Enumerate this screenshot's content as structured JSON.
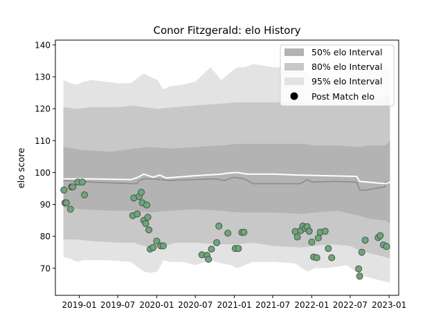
{
  "chart_data": {
    "type": "scatter",
    "title": "Conor Fitzgerald: elo History",
    "xlabel": "",
    "ylabel": "elo score",
    "xlim": [
      "2018-09-10",
      "2023-02-15"
    ],
    "ylim": [
      61.5,
      141.5
    ],
    "x_ticks": [
      "2019-01",
      "2019-07",
      "2020-01",
      "2020-07",
      "2021-01",
      "2021-07",
      "2022-01",
      "2022-07",
      "2023-01"
    ],
    "y_ticks": [
      70,
      80,
      90,
      100,
      110,
      120,
      130,
      140
    ],
    "grid": false,
    "legend": {
      "position": "top-right",
      "entries": [
        "50% elo Interval",
        "80% elo Interval",
        "95% elo Interval",
        "Post Match elo"
      ]
    },
    "colors": {
      "band50": "#b3b3b3",
      "band80": "#c8c8c8",
      "band95": "#e3e3e3",
      "median_line": "#8c8c8c",
      "mean_line": "#ffffff",
      "points": "#6aa87a",
      "point_edge": "#4d4d4d"
    },
    "series": [
      {
        "name": "95% elo Interval",
        "kind": "band",
        "x": [
          "2018-10-18",
          "2018-11-20",
          "2018-12-20",
          "2019-01-20",
          "2019-03-01",
          "2019-05-01",
          "2019-07-01",
          "2019-09-01",
          "2019-10-10",
          "2019-11-01",
          "2019-12-01",
          "2020-01-05",
          "2020-02-01",
          "2020-03-01",
          "2020-05-01",
          "2020-07-01",
          "2020-09-10",
          "2020-11-01",
          "2020-12-15",
          "2021-01-15",
          "2021-02-20",
          "2021-04-01",
          "2021-07-01",
          "2021-10-15",
          "2021-11-15",
          "2021-12-15",
          "2022-01-15",
          "2022-03-01",
          "2022-05-01",
          "2022-06-15",
          "2022-07-15",
          "2022-08-20",
          "2022-10-01",
          "2022-11-01",
          "2022-12-01",
          "2023-01-05"
        ],
        "low": [
          73.5,
          73,
          72,
          72.5,
          72.5,
          72.5,
          72.3,
          72,
          70,
          69,
          68.5,
          69,
          72.5,
          72,
          72,
          71,
          72.5,
          71.5,
          71,
          70,
          71,
          72,
          72,
          71.5,
          70,
          69,
          70,
          70,
          70.5,
          71,
          69.5,
          68,
          67,
          66.5,
          66,
          65.5
        ],
        "high": [
          129,
          128,
          127.5,
          128.5,
          129,
          128.5,
          128,
          128,
          130,
          131,
          130,
          129,
          126,
          127,
          127.5,
          128.5,
          133,
          129,
          131.5,
          133,
          133,
          134,
          133,
          133,
          133,
          131,
          130,
          130.5,
          130,
          130,
          131,
          133.5,
          134,
          134,
          133.5,
          132
        ]
      },
      {
        "name": "80% elo Interval",
        "kind": "band",
        "x": [
          "2018-10-18",
          "2018-12-20",
          "2019-03-01",
          "2019-07-01",
          "2019-09-15",
          "2019-11-01",
          "2020-01-05",
          "2020-04-01",
          "2020-07-01",
          "2020-10-15",
          "2021-01-15",
          "2021-04-01",
          "2021-07-01",
          "2021-11-15",
          "2022-01-15",
          "2022-04-01",
          "2022-07-01",
          "2022-08-15",
          "2022-10-15",
          "2022-12-15",
          "2023-01-05"
        ],
        "low": [
          79,
          79,
          78.5,
          78,
          78,
          77,
          76.5,
          78,
          78,
          77.5,
          77.5,
          78,
          77,
          76.5,
          77,
          77.5,
          77,
          75.5,
          74.5,
          73.5,
          73
        ],
        "high": [
          120.5,
          120,
          120.5,
          120.5,
          121,
          120.5,
          120,
          120.5,
          121,
          121.5,
          122,
          122,
          122,
          122,
          121.5,
          121.5,
          122,
          122,
          123,
          124,
          124
        ]
      },
      {
        "name": "50% elo Interval",
        "kind": "band",
        "x": [
          "2018-10-18",
          "2019-01-15",
          "2019-06-01",
          "2019-09-15",
          "2019-12-01",
          "2020-03-01",
          "2020-07-01",
          "2020-11-01",
          "2021-01-15",
          "2021-07-01",
          "2021-11-15",
          "2022-01-15",
          "2022-05-01",
          "2022-08-10",
          "2022-10-01",
          "2022-12-15",
          "2023-01-05"
        ],
        "low": [
          89,
          88.5,
          88,
          88,
          87.5,
          88,
          88.5,
          88,
          87.5,
          87.5,
          87,
          87.5,
          88,
          86.5,
          85.5,
          85,
          84
        ],
        "high": [
          108,
          107,
          106.5,
          107.5,
          108,
          107.5,
          108,
          108.5,
          109,
          109,
          109,
          108.5,
          108.5,
          108,
          108.5,
          108.5,
          110
        ]
      },
      {
        "name": "median",
        "kind": "line",
        "x": [
          "2018-10-18",
          "2019-03-01",
          "2019-09-01",
          "2019-10-01",
          "2019-10-10",
          "2019-11-01",
          "2019-12-15",
          "2020-01-15",
          "2020-03-01",
          "2020-07-01",
          "2020-10-01",
          "2020-11-15",
          "2021-01-01",
          "2021-02-15",
          "2021-04-01",
          "2021-07-01",
          "2021-10-01",
          "2021-11-10",
          "2021-12-10",
          "2022-01-01",
          "2022-05-01",
          "2022-08-01",
          "2022-08-15",
          "2022-09-15",
          "2022-12-10",
          "2022-12-15",
          "2023-01-05"
        ],
        "values": [
          97.5,
          97,
          96.5,
          96.5,
          97.5,
          98,
          98,
          97.8,
          97.5,
          97.8,
          98,
          97.5,
          98.5,
          98,
          96.5,
          96.5,
          96.5,
          96.5,
          97.8,
          97,
          97.2,
          97,
          94.5,
          94.5,
          95.5,
          97,
          97
        ]
      },
      {
        "name": "mean",
        "kind": "line",
        "x": [
          "2018-10-18",
          "2019-03-01",
          "2019-09-01",
          "2019-10-05",
          "2019-11-01",
          "2019-12-15",
          "2020-01-15",
          "2020-02-15",
          "2020-07-01",
          "2020-11-01",
          "2020-12-01",
          "2021-01-15",
          "2021-03-01",
          "2021-07-01",
          "2021-11-01",
          "2022-03-01",
          "2022-08-01",
          "2022-08-15",
          "2022-12-15",
          "2023-01-05"
        ],
        "values": [
          98,
          98,
          97.8,
          98.5,
          99.5,
          98.5,
          99.2,
          98.3,
          99,
          99.5,
          99.8,
          100,
          99.5,
          99.5,
          99.2,
          99,
          98.8,
          97.2,
          96.5,
          97
        ]
      },
      {
        "name": "Post Match elo",
        "kind": "points",
        "x": [
          "2018-10-20",
          "2018-10-25",
          "2018-11-01",
          "2018-11-20",
          "2018-11-25",
          "2018-12-01",
          "2018-12-25",
          "2019-01-15",
          "2019-01-25",
          "2019-09-10",
          "2019-09-15",
          "2019-10-01",
          "2019-10-10",
          "2019-10-20",
          "2019-10-25",
          "2019-11-01",
          "2019-11-10",
          "2019-11-15",
          "2019-11-20",
          "2019-11-25",
          "2019-12-01",
          "2019-12-15",
          "2020-01-01",
          "2020-01-20",
          "2020-02-01",
          "2020-08-01",
          "2020-08-25",
          "2020-09-01",
          "2020-09-15",
          "2020-10-10",
          "2020-10-20",
          "2020-12-01",
          "2021-01-05",
          "2021-01-20",
          "2021-02-05",
          "2021-02-15",
          "2021-10-15",
          "2021-10-25",
          "2021-11-10",
          "2021-11-20",
          "2021-12-01",
          "2021-12-10",
          "2021-12-20",
          "2022-01-01",
          "2022-01-10",
          "2022-01-25",
          "2022-02-01",
          "2022-02-10",
          "2022-03-05",
          "2022-03-20",
          "2022-04-05",
          "2022-08-10",
          "2022-08-15",
          "2022-08-25",
          "2022-09-10",
          "2022-11-10",
          "2022-11-20",
          "2022-12-05",
          "2022-12-20"
        ],
        "values": [
          94.5,
          90.5,
          90.5,
          88.5,
          95.5,
          95.5,
          97,
          97,
          93,
          86.5,
          92,
          87,
          92.5,
          93.8,
          90.5,
          85,
          84,
          89.8,
          86,
          82,
          76,
          76.5,
          78.5,
          77,
          77,
          74.2,
          74,
          72.8,
          76,
          78,
          83.2,
          81,
          76.2,
          76.2,
          81.2,
          81.3,
          81.5,
          79.8,
          81.8,
          83.2,
          82.5,
          83,
          81.6,
          78.2,
          73.5,
          73.3,
          79.5,
          81.3,
          81.6,
          76.2,
          73.3,
          69.8,
          67.5,
          75,
          78.8,
          79.6,
          80.2,
          77.3,
          76.8
        ]
      }
    ]
  }
}
